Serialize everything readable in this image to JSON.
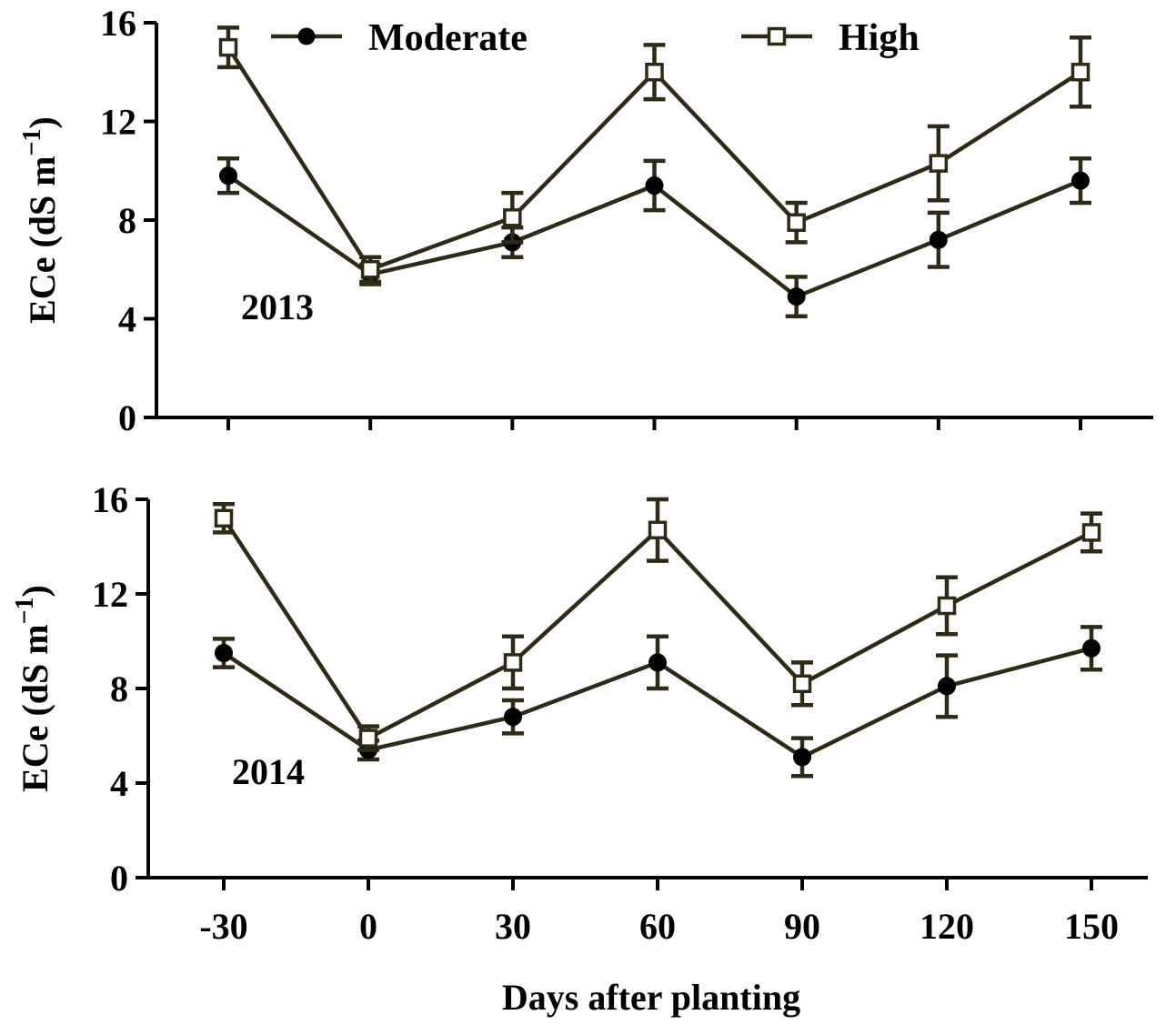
{
  "chart_data": [
    {
      "type": "line",
      "panel_label": "2013",
      "categories": [
        "-30",
        "0",
        "30",
        "60",
        "90",
        "120",
        "150"
      ],
      "x": [
        -30,
        0,
        30,
        60,
        90,
        120,
        150
      ],
      "ylabel_main": "ECe (dS m",
      "ylabel_sup": "−1",
      "ylabel_close": ")",
      "ylim": [
        0,
        16
      ],
      "yticks": [
        0,
        4,
        8,
        12,
        16
      ],
      "grid": false,
      "legend": {
        "position": "top",
        "items": [
          {
            "name": "Moderate",
            "marker": "filled-circle"
          },
          {
            "name": "High",
            "marker": "open-square"
          }
        ]
      },
      "series": [
        {
          "name": "Moderate",
          "marker": "filled-circle",
          "color": "#2f2a16",
          "values": [
            9.8,
            5.8,
            7.1,
            9.4,
            4.9,
            7.2,
            9.6
          ],
          "errors": [
            0.7,
            0.4,
            0.6,
            1.0,
            0.8,
            1.1,
            0.9
          ]
        },
        {
          "name": "High",
          "marker": "open-square",
          "color": "#2f2a16",
          "values": [
            15.0,
            6.0,
            8.1,
            14.0,
            7.9,
            10.3,
            14.0
          ],
          "errors": [
            0.8,
            0.5,
            1.0,
            1.1,
            0.8,
            1.5,
            1.4
          ]
        }
      ]
    },
    {
      "type": "line",
      "panel_label": "2014",
      "categories": [
        "-30",
        "0",
        "30",
        "60",
        "90",
        "120",
        "150"
      ],
      "x": [
        -30,
        0,
        30,
        60,
        90,
        120,
        150
      ],
      "xlabel": "Days after planting",
      "ylabel_main": "ECe (dS m",
      "ylabel_sup": "−1",
      "ylabel_close": ")",
      "ylim": [
        0,
        16
      ],
      "yticks": [
        0,
        4,
        8,
        12,
        16
      ],
      "grid": false,
      "series": [
        {
          "name": "Moderate",
          "marker": "filled-circle",
          "color": "#2f2a16",
          "values": [
            9.5,
            5.4,
            6.8,
            9.1,
            5.1,
            8.1,
            9.7
          ],
          "errors": [
            0.6,
            0.4,
            0.7,
            1.1,
            0.8,
            1.3,
            0.9
          ]
        },
        {
          "name": "High",
          "marker": "open-square",
          "color": "#2f2a16",
          "values": [
            15.2,
            5.9,
            9.1,
            14.7,
            8.2,
            11.5,
            14.6
          ],
          "errors": [
            0.6,
            0.5,
            1.1,
            1.3,
            0.9,
            1.2,
            0.8
          ]
        }
      ]
    }
  ],
  "colors": {
    "series_line": "#2f2a16",
    "axis": "#000000",
    "marker_fill": "#000000",
    "open_marker_fill": "#ffffff"
  }
}
